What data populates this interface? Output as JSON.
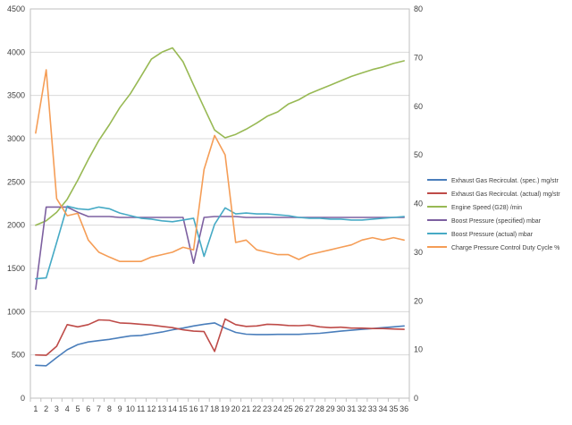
{
  "chart_data": {
    "type": "line",
    "title": "",
    "xlabel": "",
    "ylabel": "",
    "y2label": "",
    "categories": [
      "1",
      "2",
      "3",
      "4",
      "5",
      "6",
      "7",
      "8",
      "9",
      "10",
      "11",
      "12",
      "13",
      "14",
      "15",
      "16",
      "17",
      "18",
      "19",
      "20",
      "21",
      "22",
      "23",
      "24",
      "25",
      "26",
      "27",
      "28",
      "29",
      "30",
      "31",
      "32",
      "33",
      "34",
      "35",
      "36"
    ],
    "ylim": [
      0,
      4500
    ],
    "yticks": [
      "0",
      "500",
      "1000",
      "1500",
      "2000",
      "2500",
      "3000",
      "3500",
      "4000",
      "4500"
    ],
    "y2lim": [
      0,
      80
    ],
    "y2ticks": [
      "0",
      "10",
      "20",
      "30",
      "40",
      "50",
      "60",
      "70",
      "80"
    ],
    "grid": true,
    "legend_position": "right",
    "series": [
      {
        "name": "Exhaust Gas Recirculat. (spec.)  mg/str",
        "axis": "left",
        "color": "#4a7ebb",
        "values": [
          380,
          375,
          470,
          560,
          620,
          650,
          665,
          680,
          700,
          720,
          725,
          745,
          765,
          790,
          810,
          835,
          855,
          870,
          810,
          760,
          740,
          735,
          735,
          738,
          738,
          738,
          745,
          750,
          762,
          775,
          785,
          795,
          805,
          815,
          825,
          835
        ]
      },
      {
        "name": "Exhaust Gas Recirculat. (actual)  mg/str",
        "axis": "left",
        "color": "#be4b48",
        "values": [
          500,
          495,
          600,
          850,
          825,
          850,
          905,
          900,
          870,
          865,
          855,
          845,
          830,
          815,
          790,
          775,
          770,
          540,
          915,
          850,
          830,
          835,
          855,
          850,
          840,
          838,
          845,
          825,
          815,
          820,
          810,
          810,
          805,
          805,
          800,
          795
        ]
      },
      {
        "name": "Engine Speed (G28)  /min",
        "axis": "left",
        "color": "#98b954",
        "values": [
          2000,
          2050,
          2150,
          2300,
          2520,
          2760,
          2980,
          3160,
          3360,
          3520,
          3720,
          3920,
          4000,
          4050,
          3890,
          3620,
          3360,
          3100,
          3010,
          3050,
          3110,
          3180,
          3260,
          3310,
          3400,
          3450,
          3520,
          3570,
          3620,
          3670,
          3720,
          3760,
          3800,
          3830,
          3870,
          3900
        ]
      },
      {
        "name": "Boost Pressure (specified)  mbar",
        "axis": "left",
        "color": "#7d60a0",
        "values": [
          1260,
          2210,
          2210,
          2210,
          2150,
          2100,
          2100,
          2100,
          2090,
          2090,
          2090,
          2090,
          2090,
          2090,
          2090,
          1560,
          2090,
          2100,
          2100,
          2100,
          2090,
          2090,
          2090,
          2090,
          2090,
          2090,
          2090,
          2090,
          2090,
          2090,
          2090,
          2090,
          2090,
          2090,
          2090,
          2090
        ]
      },
      {
        "name": "Boost Pressure (actual)  mbar",
        "axis": "left",
        "color": "#46aac5",
        "values": [
          1380,
          1390,
          1800,
          2220,
          2190,
          2180,
          2210,
          2190,
          2140,
          2110,
          2080,
          2070,
          2050,
          2040,
          2060,
          2080,
          1640,
          2010,
          2200,
          2130,
          2140,
          2130,
          2130,
          2120,
          2110,
          2090,
          2080,
          2080,
          2070,
          2070,
          2060,
          2060,
          2070,
          2080,
          2090,
          2100
        ]
      },
      {
        "name": "Charge Pressure Control Duty Cycle  %",
        "axis": "right",
        "color": "#f59d56",
        "values": [
          54.5,
          67.5,
          41,
          37.5,
          38,
          32.5,
          30,
          29,
          28.1,
          28.1,
          28.1,
          29,
          29.5,
          30,
          31,
          30.5,
          47,
          54,
          50,
          32,
          32.5,
          30.5,
          30,
          29.5,
          29.5,
          28.5,
          29.5,
          30,
          30.5,
          31,
          31.5,
          32.5,
          33,
          32.5,
          33,
          32.5
        ]
      }
    ]
  }
}
